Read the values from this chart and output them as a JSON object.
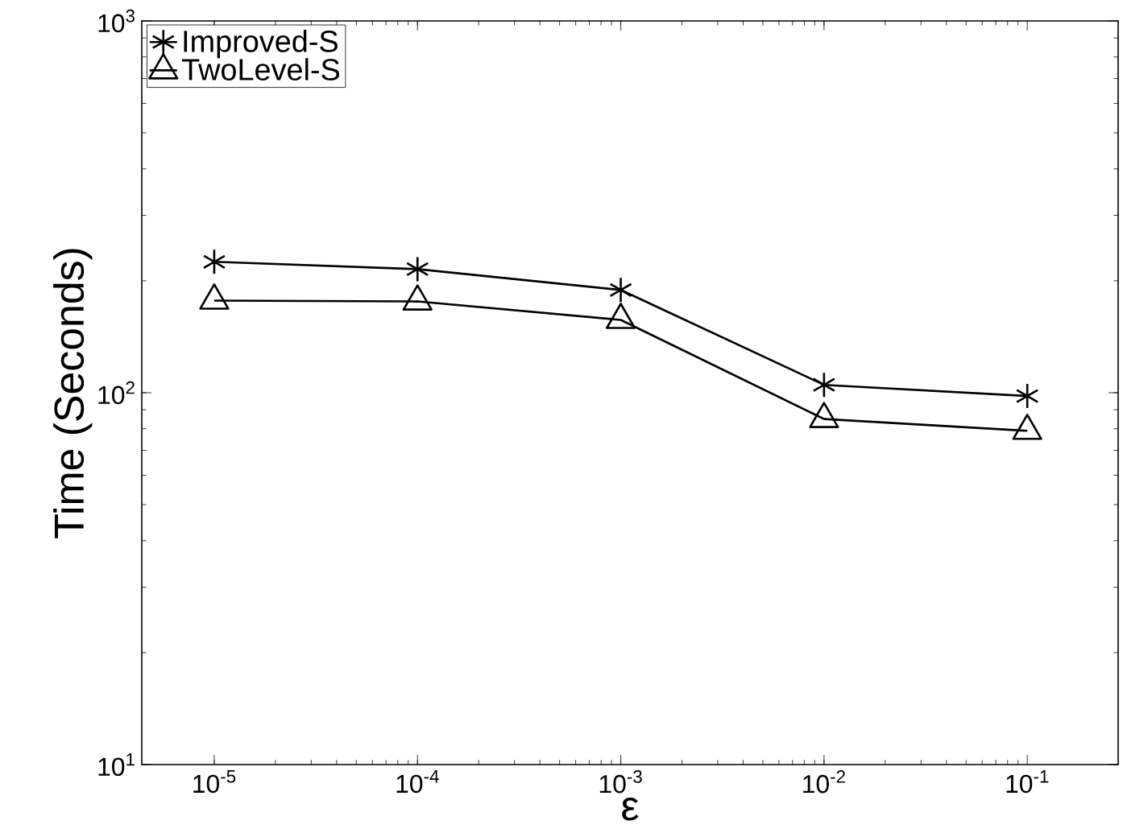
{
  "chart_data": {
    "type": "line",
    "xlabel": "ε",
    "ylabel": "Time (Seconds)",
    "log": "xy",
    "x": [
      1e-05,
      0.0001,
      0.001,
      0.01,
      0.1
    ],
    "series": [
      {
        "name": "Improved-S",
        "color": "#000000",
        "marker": "cross",
        "values": [
          225,
          215,
          189,
          105,
          98
        ]
      },
      {
        "name": "TwoLevel-S",
        "color": "#000000",
        "marker": "triangle",
        "values": [
          177,
          176,
          157,
          85,
          79
        ]
      }
    ],
    "xlim": [
      4.4e-06,
      0.28
    ],
    "ylim": [
      10,
      1000
    ],
    "xticks": [
      {
        "value": 1e-05,
        "label": "10$^{-5}$"
      },
      {
        "value": 0.0001,
        "label": "10$^{-4}$"
      },
      {
        "value": 0.001,
        "label": "10$^{-3}$"
      },
      {
        "value": 0.01,
        "label": "10$^{-2}$"
      },
      {
        "value": 0.1,
        "label": "10$^{-1}$"
      }
    ],
    "yticks": [
      {
        "value": 10,
        "label": "10$^{1}$"
      },
      {
        "value": 100,
        "label": "10$^{2}$"
      },
      {
        "value": 1000,
        "label": "10$^{3}$"
      }
    ],
    "legend": "top left",
    "grid": false,
    "line_style": "solid"
  }
}
